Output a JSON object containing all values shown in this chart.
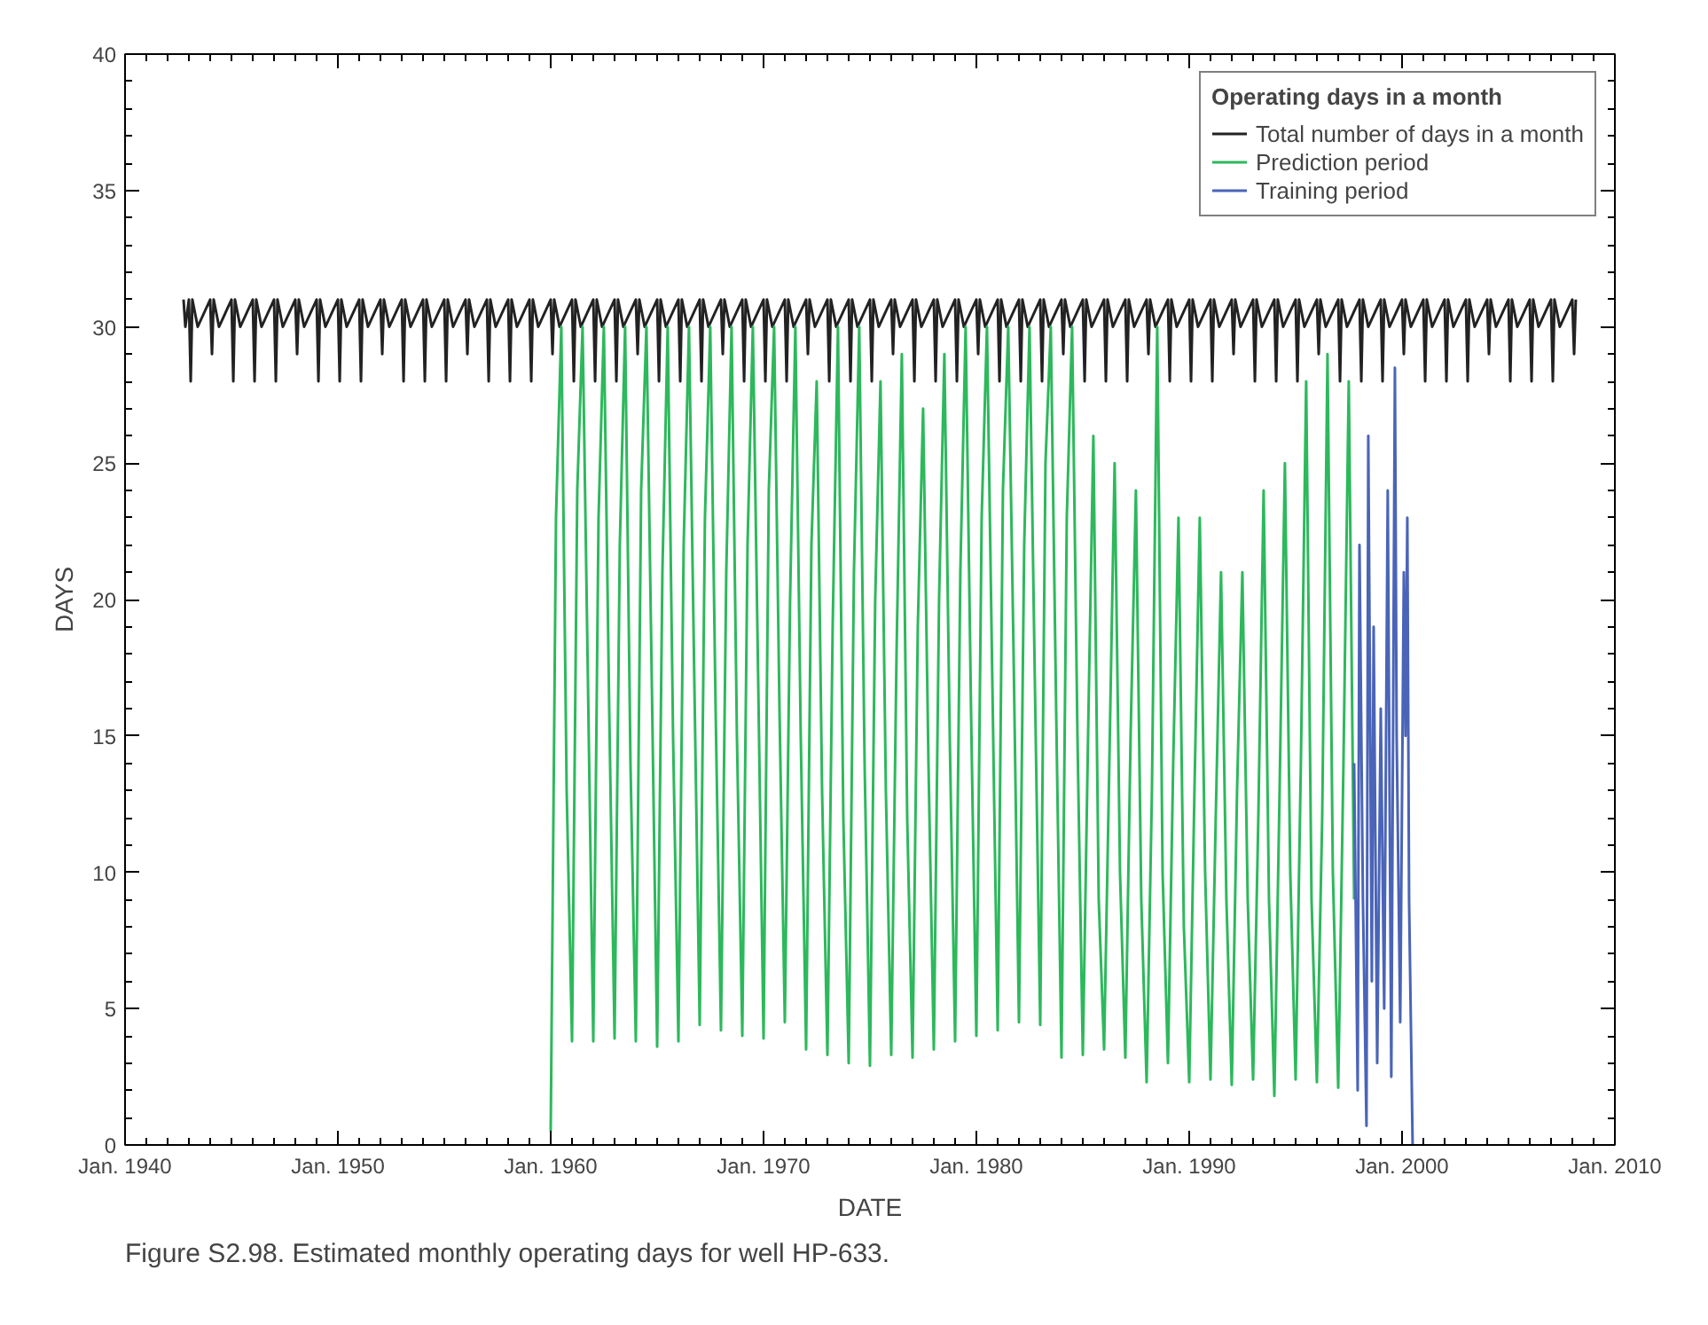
{
  "chart_data": {
    "type": "line",
    "xlabel": "DATE",
    "ylabel": "DAYS",
    "annotations": [
      "Figure S2.98.  Estimated monthly operating days for well HP-633."
    ],
    "legend_title": "Operating days in a month",
    "xlim": [
      "1940-01",
      "2010-01"
    ],
    "xticks": [
      {
        "value": "1940-01",
        "label": "Jan. 1940"
      },
      {
        "value": "1950-01",
        "label": "Jan. 1950"
      },
      {
        "value": "1960-01",
        "label": "Jan. 1960"
      },
      {
        "value": "1970-01",
        "label": "Jan. 1970"
      },
      {
        "value": "1980-01",
        "label": "Jan. 1980"
      },
      {
        "value": "1990-01",
        "label": "Jan. 1990"
      },
      {
        "value": "2000-01",
        "label": "Jan. 2000"
      },
      {
        "value": "2010-01",
        "label": "Jan. 2010"
      }
    ],
    "ylim": [
      0,
      40
    ],
    "yticks": [
      0,
      5,
      10,
      15,
      20,
      25,
      30,
      35,
      40
    ],
    "grid": false,
    "legend": "top right",
    "series": [
      {
        "name": "Total number of days in a month",
        "color": "#222222",
        "x": [
          "1942-10",
          "1942-11",
          "1943-01",
          "1943-02",
          "1943-03",
          "1943-06",
          "1944-01",
          "1944-02",
          "1944-03",
          "1944-06",
          "1945-01",
          "1945-02",
          "1945-03",
          "1945-06",
          "1946-01",
          "1946-02",
          "1946-03",
          "1946-06",
          "1947-01",
          "1947-02",
          "1947-03",
          "1947-06",
          "1948-01",
          "1948-02",
          "1948-03",
          "1948-06",
          "1949-01",
          "1949-02",
          "1949-03",
          "1949-06",
          "1950-01",
          "1950-02",
          "1950-03",
          "1950-06",
          "1951-01",
          "1951-02",
          "1951-03",
          "1951-06",
          "1952-01",
          "1952-02",
          "1952-03",
          "1952-06",
          "1953-01",
          "1953-02",
          "1953-03",
          "1953-06",
          "1954-01",
          "1954-02",
          "1954-03",
          "1954-06",
          "1955-01",
          "1955-02",
          "1955-03",
          "1955-06",
          "1956-01",
          "1956-02",
          "1956-03",
          "1956-06",
          "1957-01",
          "1957-02",
          "1957-03",
          "1957-06",
          "1958-01",
          "1958-02",
          "1958-03",
          "1958-06",
          "1959-01",
          "1959-02",
          "1959-03",
          "1959-06",
          "1960-01",
          "1960-02",
          "1960-03",
          "1960-06",
          "1961-01",
          "1961-02",
          "1961-03",
          "1961-06",
          "1962-01",
          "1962-02",
          "1962-03",
          "1962-06",
          "1963-01",
          "1963-02",
          "1963-03",
          "1963-06",
          "1964-01",
          "1964-02",
          "1964-03",
          "1964-06",
          "1965-01",
          "1965-02",
          "1965-03",
          "1965-06",
          "1966-01",
          "1966-02",
          "1966-03",
          "1966-06",
          "1967-01",
          "1967-02",
          "1967-03",
          "1967-06",
          "1968-01",
          "1968-02",
          "1968-03",
          "1968-06",
          "1969-01",
          "1969-02",
          "1969-03",
          "1969-06",
          "1970-01",
          "1970-02",
          "1970-03",
          "1970-06",
          "1971-01",
          "1971-02",
          "1971-03",
          "1971-06",
          "1972-01",
          "1972-02",
          "1972-03",
          "1972-06",
          "1973-01",
          "1973-02",
          "1973-03",
          "1973-06",
          "1974-01",
          "1974-02",
          "1974-03",
          "1974-06",
          "1975-01",
          "1975-02",
          "1975-03",
          "1975-06",
          "1976-01",
          "1976-02",
          "1976-03",
          "1976-06",
          "1977-01",
          "1977-02",
          "1977-03",
          "1977-06",
          "1978-01",
          "1978-02",
          "1978-03",
          "1978-06",
          "1979-01",
          "1979-02",
          "1979-03",
          "1979-06",
          "1980-01",
          "1980-02",
          "1980-03",
          "1980-06",
          "1981-01",
          "1981-02",
          "1981-03",
          "1981-06",
          "1982-01",
          "1982-02",
          "1982-03",
          "1982-06",
          "1983-01",
          "1983-02",
          "1983-03",
          "1983-06",
          "1984-01",
          "1984-02",
          "1984-03",
          "1984-06",
          "1985-01",
          "1985-02",
          "1985-03",
          "1985-06",
          "1986-01",
          "1986-02",
          "1986-03",
          "1986-06",
          "1987-01",
          "1987-02",
          "1987-03",
          "1987-06",
          "1988-01",
          "1988-02",
          "1988-03",
          "1988-06",
          "1989-01",
          "1989-02",
          "1989-03",
          "1989-06",
          "1990-01",
          "1990-02",
          "1990-03",
          "1990-06",
          "1991-01",
          "1991-02",
          "1991-03",
          "1991-06",
          "1992-01",
          "1992-02",
          "1992-03",
          "1992-06",
          "1993-01",
          "1993-02",
          "1993-03",
          "1993-06",
          "1994-01",
          "1994-02",
          "1994-03",
          "1994-06",
          "1995-01",
          "1995-02",
          "1995-03",
          "1995-06",
          "1996-01",
          "1996-02",
          "1996-03",
          "1996-06",
          "1997-01",
          "1997-02",
          "1997-03",
          "1997-06",
          "1998-01",
          "1998-02",
          "1998-03",
          "1998-06",
          "1999-01",
          "1999-02",
          "1999-03",
          "1999-06",
          "2000-01",
          "2000-02",
          "2000-03",
          "2000-06",
          "2001-01",
          "2001-02",
          "2001-03",
          "2001-06",
          "2002-01",
          "2002-02",
          "2002-03",
          "2002-06",
          "2003-01",
          "2003-02",
          "2003-03",
          "2003-06",
          "2004-01",
          "2004-02",
          "2004-03",
          "2004-06",
          "2005-01",
          "2005-02",
          "2005-03",
          "2005-06",
          "2006-01",
          "2006-02",
          "2006-03",
          "2006-06",
          "2007-01",
          "2007-02",
          "2007-03",
          "2007-06",
          "2008-01",
          "2008-02",
          "2008-03"
        ],
        "values": [
          31,
          30,
          31,
          28,
          31,
          30,
          31,
          29,
          31,
          30,
          31,
          28,
          31,
          30,
          31,
          28,
          31,
          30,
          31,
          28,
          31,
          30,
          31,
          29,
          31,
          30,
          31,
          28,
          31,
          30,
          31,
          28,
          31,
          30,
          31,
          28,
          31,
          30,
          31,
          29,
          31,
          30,
          31,
          28,
          31,
          30,
          31,
          28,
          31,
          30,
          31,
          28,
          31,
          30,
          31,
          29,
          31,
          30,
          31,
          28,
          31,
          30,
          31,
          28,
          31,
          30,
          31,
          28,
          31,
          30,
          31,
          29,
          31,
          30,
          31,
          28,
          31,
          30,
          31,
          28,
          31,
          30,
          31,
          28,
          31,
          30,
          31,
          29,
          31,
          30,
          31,
          28,
          31,
          30,
          31,
          28,
          31,
          30,
          31,
          28,
          31,
          30,
          31,
          29,
          31,
          30,
          31,
          28,
          31,
          30,
          31,
          28,
          31,
          30,
          31,
          28,
          31,
          30,
          31,
          29,
          31,
          30,
          31,
          28,
          31,
          30,
          31,
          28,
          31,
          30,
          31,
          28,
          31,
          30,
          31,
          29,
          31,
          30,
          31,
          28,
          31,
          30,
          31,
          28,
          31,
          30,
          31,
          28,
          31,
          30,
          31,
          29,
          31,
          30,
          31,
          28,
          31,
          30,
          31,
          28,
          31,
          30,
          31,
          28,
          31,
          30,
          31,
          29,
          31,
          30,
          31,
          28,
          31,
          30,
          31,
          28,
          31,
          30,
          31,
          28,
          31,
          30,
          31,
          29,
          31,
          30,
          31,
          28,
          31,
          30,
          31,
          28,
          31,
          30,
          31,
          28,
          31,
          30,
          31,
          29,
          31,
          30,
          31,
          28,
          31,
          30,
          31,
          28,
          31,
          30,
          31,
          28,
          31,
          30,
          31,
          29,
          31,
          30,
          31,
          28,
          31,
          30,
          31,
          28,
          31,
          30,
          31,
          28,
          31,
          30,
          31,
          29,
          31,
          30,
          31,
          28,
          31,
          30,
          31,
          28,
          31,
          30,
          31,
          28,
          31,
          30,
          31,
          29,
          31,
          30,
          31,
          28,
          31,
          30,
          31,
          28,
          31,
          30,
          31,
          28,
          31,
          30,
          31,
          29,
          31
        ]
      },
      {
        "name": "Prediction period",
        "color": "#2db85c",
        "x": [
          "1960-01",
          "1960-04",
          "1960-07",
          "1960-10",
          "1961-01",
          "1961-04",
          "1961-07",
          "1961-10",
          "1962-01",
          "1962-04",
          "1962-07",
          "1962-10",
          "1963-01",
          "1963-04",
          "1963-07",
          "1963-10",
          "1964-01",
          "1964-04",
          "1964-07",
          "1964-10",
          "1965-01",
          "1965-04",
          "1965-07",
          "1965-10",
          "1966-01",
          "1966-04",
          "1966-07",
          "1966-10",
          "1967-01",
          "1967-04",
          "1967-07",
          "1967-10",
          "1968-01",
          "1968-04",
          "1968-07",
          "1968-10",
          "1969-01",
          "1969-04",
          "1969-07",
          "1969-10",
          "1970-01",
          "1970-04",
          "1970-07",
          "1970-10",
          "1971-01",
          "1971-04",
          "1971-07",
          "1971-10",
          "1972-01",
          "1972-04",
          "1972-07",
          "1972-10",
          "1973-01",
          "1973-04",
          "1973-07",
          "1973-10",
          "1974-01",
          "1974-04",
          "1974-07",
          "1974-10",
          "1975-01",
          "1975-04",
          "1975-07",
          "1975-10",
          "1976-01",
          "1976-04",
          "1976-07",
          "1976-10",
          "1977-01",
          "1977-04",
          "1977-07",
          "1977-10",
          "1978-01",
          "1978-04",
          "1978-07",
          "1978-10",
          "1979-01",
          "1979-04",
          "1979-07",
          "1979-10",
          "1980-01",
          "1980-04",
          "1980-07",
          "1980-10",
          "1981-01",
          "1981-04",
          "1981-07",
          "1981-10",
          "1982-01",
          "1982-04",
          "1982-07",
          "1982-10",
          "1983-01",
          "1983-04",
          "1983-07",
          "1983-10",
          "1984-01",
          "1984-04",
          "1984-07",
          "1984-10",
          "1985-01",
          "1985-04",
          "1985-07",
          "1985-10",
          "1986-01",
          "1986-04",
          "1986-07",
          "1986-10",
          "1987-01",
          "1987-04",
          "1987-07",
          "1987-10",
          "1988-01",
          "1988-04",
          "1988-07",
          "1988-10",
          "1989-01",
          "1989-04",
          "1989-07",
          "1989-10",
          "1990-01",
          "1990-04",
          "1990-07",
          "1990-10",
          "1991-01",
          "1991-04",
          "1991-07",
          "1991-10",
          "1992-01",
          "1992-04",
          "1992-07",
          "1992-10",
          "1993-01",
          "1993-04",
          "1993-07",
          "1993-10",
          "1994-01",
          "1994-04",
          "1994-07",
          "1994-10",
          "1995-01",
          "1995-04",
          "1995-07",
          "1995-10",
          "1996-01",
          "1996-04",
          "1996-07",
          "1996-10",
          "1997-01",
          "1997-04",
          "1997-07",
          "1997-10"
        ],
        "values": [
          0.5,
          23,
          30,
          13,
          3.8,
          24,
          30,
          17,
          3.8,
          23,
          30,
          16,
          3.9,
          22,
          30,
          14,
          3.8,
          24,
          30,
          17,
          3.6,
          21,
          30,
          15,
          3.8,
          22,
          30,
          17,
          4.4,
          23,
          30,
          16,
          4.2,
          21,
          30,
          15,
          4.0,
          22,
          30,
          17,
          3.9,
          24,
          30,
          16,
          4.5,
          20,
          30,
          15,
          3.5,
          22,
          28,
          13,
          3.3,
          19,
          30,
          12,
          3.0,
          21,
          30,
          14,
          2.9,
          20,
          28,
          13,
          3.3,
          18,
          29,
          12,
          3.2,
          19,
          27,
          14,
          3.5,
          20,
          29,
          15,
          3.8,
          21,
          30,
          16,
          4.0,
          23,
          30,
          17,
          4.2,
          24,
          30,
          18,
          4.5,
          22,
          30,
          17,
          4.4,
          25,
          30,
          16,
          3.2,
          23,
          30,
          15,
          3.3,
          15,
          26,
          9,
          3.5,
          14,
          25,
          10,
          3.2,
          15,
          24,
          9,
          2.3,
          13,
          30,
          10,
          3.0,
          14,
          23,
          8,
          2.3,
          13,
          23,
          10,
          2.4,
          12,
          21,
          9,
          2.2,
          13,
          21,
          9,
          2.4,
          12,
          24,
          9,
          1.8,
          13,
          25,
          10,
          2.4,
          14,
          28,
          9,
          2.3,
          12,
          29,
          10,
          2.1,
          14,
          28,
          9
        ]
      },
      {
        "name": "Training period",
        "color": "#4a64b8",
        "x": [
          "1997-10",
          "1997-12",
          "1998-01",
          "1998-03",
          "1998-05",
          "1998-06",
          "1998-08",
          "1998-09",
          "1998-11",
          "1999-01",
          "1999-03",
          "1999-05",
          "1999-07",
          "1999-09",
          "1999-10",
          "1999-12",
          "2000-02",
          "2000-03",
          "2000-04",
          "2000-05",
          "2000-07"
        ],
        "values": [
          14,
          2,
          22,
          9,
          0.7,
          26,
          6,
          19,
          3,
          16,
          5,
          24,
          2.5,
          28.5,
          15,
          4.5,
          21,
          15,
          23,
          9,
          0
        ]
      }
    ]
  }
}
